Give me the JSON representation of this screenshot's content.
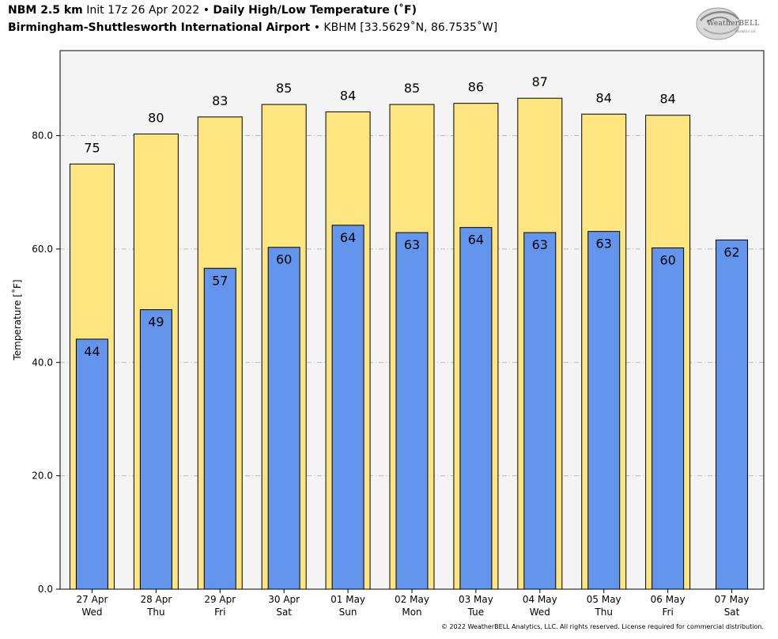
{
  "header": {
    "line1_model": "NBM 2.5 km",
    "line1_init": "Init 17z 26 Apr 2022",
    "line1_sep": "•",
    "line1_product": "Daily High/Low Temperature (˚F)",
    "line2_station": "Birmingham-Shuttlesworth International Airport",
    "line2_sep": "•",
    "line2_coords": "KBHM [33.5629˚N, 86.7535˚W]"
  },
  "logo": {
    "text": "WeatherBELL",
    "subtext": "Analytics LLC"
  },
  "footer": "© 2022 WeatherBELL Analytics, LLC. All rights reserved. License required for commercial distribution.",
  "colors": {
    "high_bar": "#FFE57F",
    "low_bar": "#6495ED",
    "plot_bg": "#F4F4F4",
    "grid": "#BBBBBB"
  },
  "chart_data": {
    "type": "bar",
    "title": "Daily High/Low Temperature (˚F)",
    "ylabel": "Temperature [˚F]",
    "ylim": [
      0,
      95
    ],
    "yticks": [
      0,
      20,
      40,
      60,
      80
    ],
    "ytick_labels": [
      "0.0",
      "20.0",
      "40.0",
      "60.0",
      "80.0"
    ],
    "grid": "horizontal dash-dot",
    "categories": [
      "27 Apr",
      "28 Apr",
      "29 Apr",
      "30 Apr",
      "01 May",
      "02 May",
      "03 May",
      "04 May",
      "05 May",
      "06 May",
      "07 May"
    ],
    "weekdays": [
      "Wed",
      "Thu",
      "Fri",
      "Sat",
      "Sun",
      "Mon",
      "Tue",
      "Wed",
      "Thu",
      "Fri",
      "Sat"
    ],
    "series": [
      {
        "color": "#FFE57F",
        "values": [
          75,
          80.3,
          83.3,
          85.5,
          84.2,
          85.5,
          85.7,
          86.6,
          83.8,
          83.6,
          null
        ],
        "labels": [
          "75",
          "80",
          "83",
          "85",
          "84",
          "85",
          "86",
          "87",
          "84",
          "84",
          ""
        ]
      },
      {
        "color": "#6495ED",
        "values": [
          44.1,
          49.3,
          56.6,
          60.3,
          64.2,
          62.9,
          63.8,
          62.9,
          63.1,
          60.2,
          61.6
        ],
        "labels": [
          "44",
          "49",
          "57",
          "60",
          "64",
          "63",
          "64",
          "63",
          "63",
          "60",
          "62"
        ]
      }
    ]
  }
}
